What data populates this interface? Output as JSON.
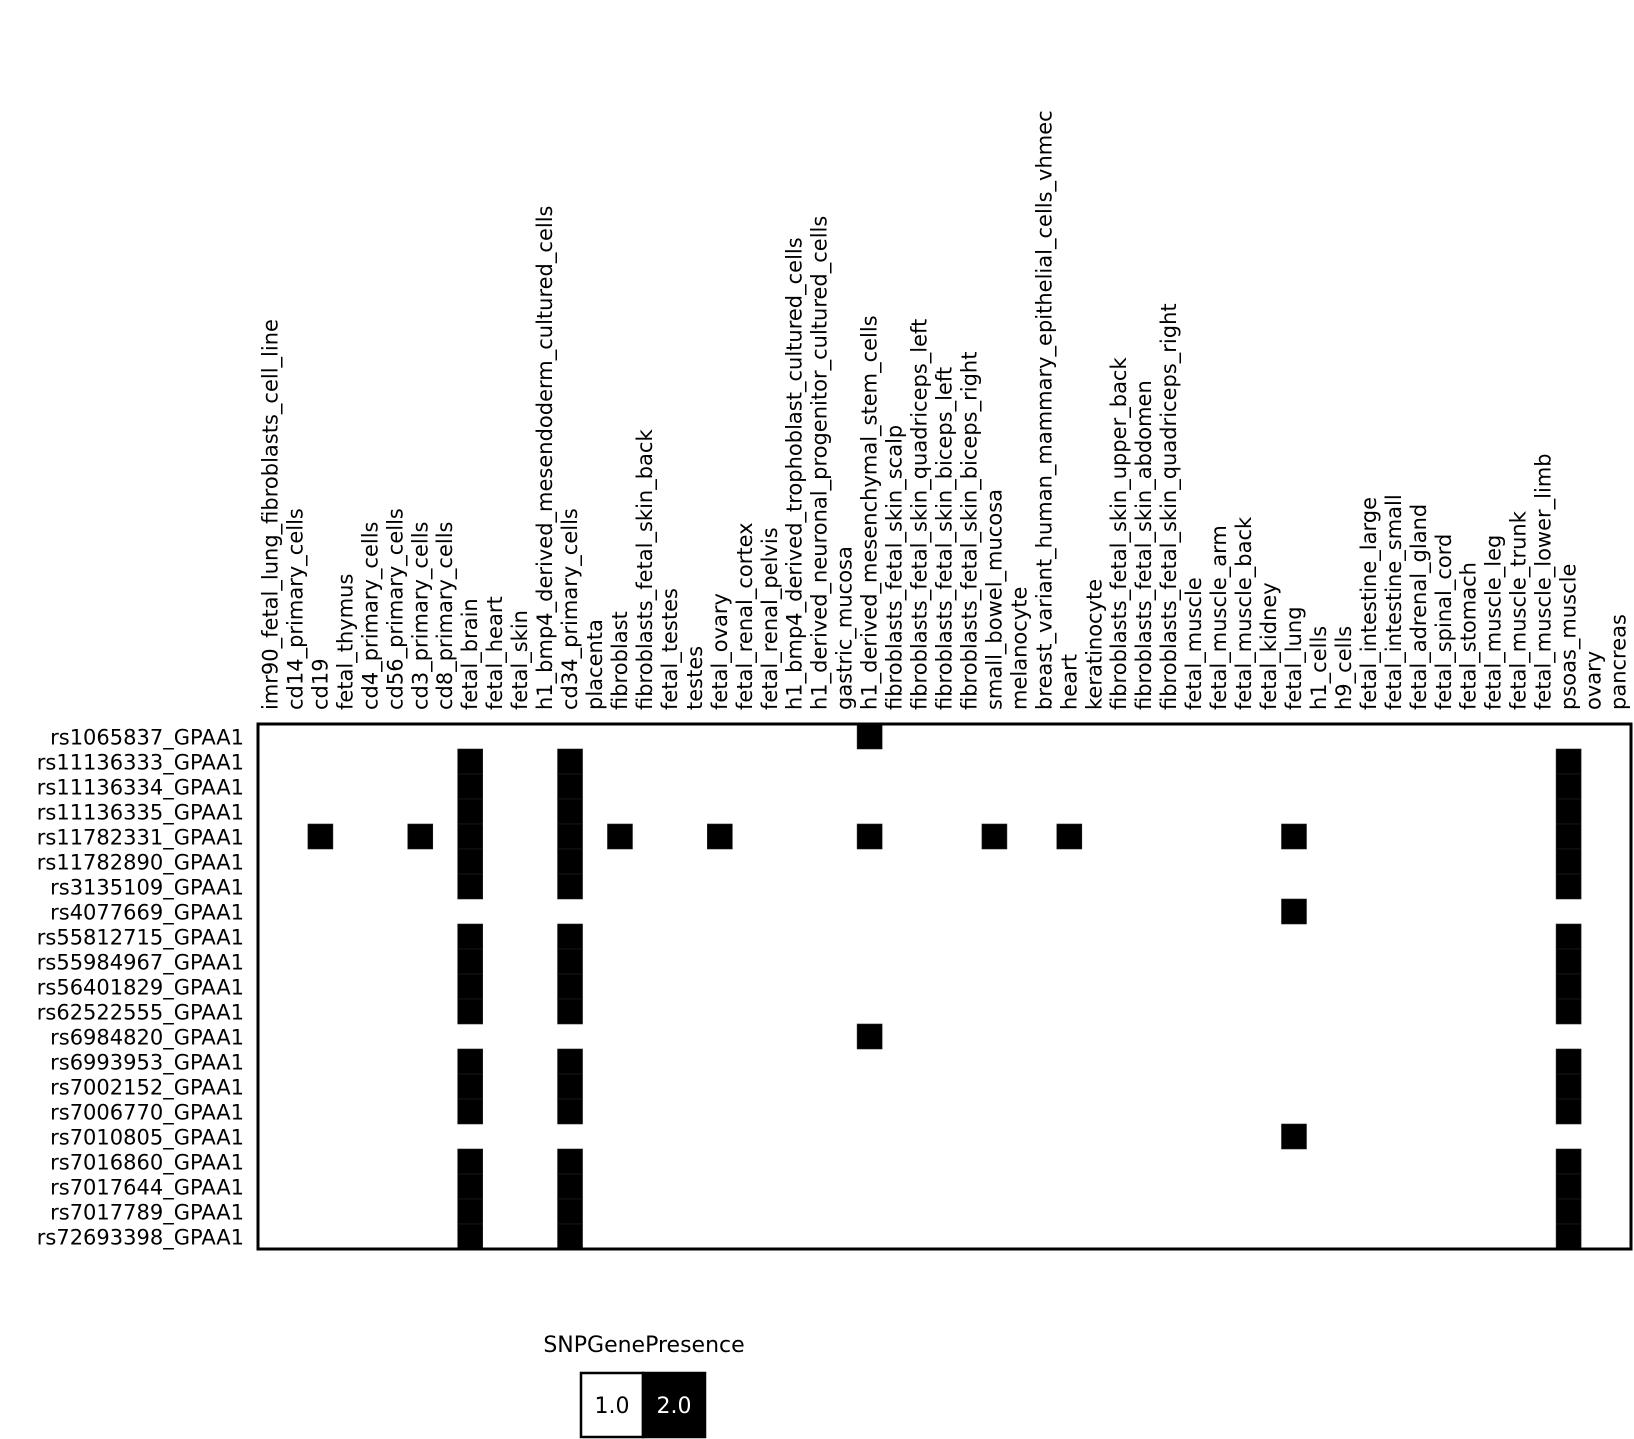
{
  "chart_data": {
    "type": "heatmap",
    "columns": [
      "imr90_fetal_lung_fibroblasts_cell_line",
      "cd14_primary_cells",
      "cd19",
      "fetal_thymus",
      "cd4_primary_cells",
      "cd56_primary_cells",
      "cd3_primary_cells",
      "cd8_primary_cells",
      "fetal_brain",
      "fetal_heart",
      "fetal_skin",
      "h1_bmp4_derived_mesendoderm_cultured_cells",
      "cd34_primary_cells",
      "placenta",
      "fibroblast",
      "fibroblasts_fetal_skin_back",
      "fetal_testes",
      "testes",
      "fetal_ovary",
      "fetal_renal_cortex",
      "fetal_renal_pelvis",
      "h1_bmp4_derived_trophoblast_cultured_cells",
      "h1_derived_neuronal_progenitor_cultured_cells",
      "gastric_mucosa",
      "h1_derived_mesenchymal_stem_cells",
      "fibroblasts_fetal_skin_scalp",
      "fibroblasts_fetal_skin_quadriceps_left",
      "fibroblasts_fetal_skin_biceps_left",
      "fibroblasts_fetal_skin_biceps_right",
      "small_bowel_mucosa",
      "melanocyte",
      "breast_variant_human_mammary_epithelial_cells_vhmec",
      "heart",
      "keratinocyte",
      "fibroblasts_fetal_skin_upper_back",
      "fibroblasts_fetal_skin_abdomen",
      "fibroblasts_fetal_skin_quadriceps_right",
      "fetal_muscle",
      "fetal_muscle_arm",
      "fetal_muscle_back",
      "fetal_kidney",
      "fetal_lung",
      "h1_cells",
      "h9_cells",
      "fetal_intestine_large",
      "fetal_intestine_small",
      "fetal_adrenal_gland",
      "fetal_spinal_cord",
      "fetal_stomach",
      "fetal_muscle_leg",
      "fetal_muscle_trunk",
      "fetal_muscle_lower_limb",
      "psoas_muscle",
      "ovary",
      "pancreas"
    ],
    "rows": [
      "rs1065837_GPAA1",
      "rs11136333_GPAA1",
      "rs11136334_GPAA1",
      "rs11136335_GPAA1",
      "rs11782331_GPAA1",
      "rs11782890_GPAA1",
      "rs3135109_GPAA1",
      "rs4077669_GPAA1",
      "rs55812715_GPAA1",
      "rs55984967_GPAA1",
      "rs56401829_GPAA1",
      "rs62522555_GPAA1",
      "rs6984820_GPAA1",
      "rs6993953_GPAA1",
      "rs7002152_GPAA1",
      "rs7006770_GPAA1",
      "rs7010805_GPAA1",
      "rs7016860_GPAA1",
      "rs7017644_GPAA1",
      "rs7017789_GPAA1",
      "rs72693398_GPAA1"
    ],
    "value_default": 1.0,
    "value_present": 2.0,
    "present_cells": [
      [
        "rs1065837_GPAA1",
        "h1_derived_mesenchymal_stem_cells"
      ],
      [
        "rs11136333_GPAA1",
        "fetal_brain"
      ],
      [
        "rs11136333_GPAA1",
        "cd34_primary_cells"
      ],
      [
        "rs11136333_GPAA1",
        "psoas_muscle"
      ],
      [
        "rs11136334_GPAA1",
        "fetal_brain"
      ],
      [
        "rs11136334_GPAA1",
        "cd34_primary_cells"
      ],
      [
        "rs11136334_GPAA1",
        "psoas_muscle"
      ],
      [
        "rs11136335_GPAA1",
        "fetal_brain"
      ],
      [
        "rs11136335_GPAA1",
        "cd34_primary_cells"
      ],
      [
        "rs11136335_GPAA1",
        "psoas_muscle"
      ],
      [
        "rs11782331_GPAA1",
        "cd19"
      ],
      [
        "rs11782331_GPAA1",
        "cd3_primary_cells"
      ],
      [
        "rs11782331_GPAA1",
        "fetal_brain"
      ],
      [
        "rs11782331_GPAA1",
        "cd34_primary_cells"
      ],
      [
        "rs11782331_GPAA1",
        "fibroblast"
      ],
      [
        "rs11782331_GPAA1",
        "fetal_ovary"
      ],
      [
        "rs11782331_GPAA1",
        "h1_derived_mesenchymal_stem_cells"
      ],
      [
        "rs11782331_GPAA1",
        "small_bowel_mucosa"
      ],
      [
        "rs11782331_GPAA1",
        "heart"
      ],
      [
        "rs11782331_GPAA1",
        "fetal_lung"
      ],
      [
        "rs11782331_GPAA1",
        "psoas_muscle"
      ],
      [
        "rs11782890_GPAA1",
        "fetal_brain"
      ],
      [
        "rs11782890_GPAA1",
        "cd34_primary_cells"
      ],
      [
        "rs11782890_GPAA1",
        "psoas_muscle"
      ],
      [
        "rs3135109_GPAA1",
        "fetal_brain"
      ],
      [
        "rs3135109_GPAA1",
        "cd34_primary_cells"
      ],
      [
        "rs3135109_GPAA1",
        "psoas_muscle"
      ],
      [
        "rs4077669_GPAA1",
        "fetal_lung"
      ],
      [
        "rs55812715_GPAA1",
        "fetal_brain"
      ],
      [
        "rs55812715_GPAA1",
        "cd34_primary_cells"
      ],
      [
        "rs55812715_GPAA1",
        "psoas_muscle"
      ],
      [
        "rs55984967_GPAA1",
        "fetal_brain"
      ],
      [
        "rs55984967_GPAA1",
        "cd34_primary_cells"
      ],
      [
        "rs55984967_GPAA1",
        "psoas_muscle"
      ],
      [
        "rs56401829_GPAA1",
        "fetal_brain"
      ],
      [
        "rs56401829_GPAA1",
        "cd34_primary_cells"
      ],
      [
        "rs56401829_GPAA1",
        "psoas_muscle"
      ],
      [
        "rs62522555_GPAA1",
        "fetal_brain"
      ],
      [
        "rs62522555_GPAA1",
        "cd34_primary_cells"
      ],
      [
        "rs62522555_GPAA1",
        "psoas_muscle"
      ],
      [
        "rs6984820_GPAA1",
        "h1_derived_mesenchymal_stem_cells"
      ],
      [
        "rs6993953_GPAA1",
        "fetal_brain"
      ],
      [
        "rs6993953_GPAA1",
        "cd34_primary_cells"
      ],
      [
        "rs6993953_GPAA1",
        "psoas_muscle"
      ],
      [
        "rs7002152_GPAA1",
        "fetal_brain"
      ],
      [
        "rs7002152_GPAA1",
        "cd34_primary_cells"
      ],
      [
        "rs7002152_GPAA1",
        "psoas_muscle"
      ],
      [
        "rs7006770_GPAA1",
        "fetal_brain"
      ],
      [
        "rs7006770_GPAA1",
        "cd34_primary_cells"
      ],
      [
        "rs7006770_GPAA1",
        "psoas_muscle"
      ],
      [
        "rs7010805_GPAA1",
        "fetal_lung"
      ],
      [
        "rs7016860_GPAA1",
        "fetal_brain"
      ],
      [
        "rs7016860_GPAA1",
        "cd34_primary_cells"
      ],
      [
        "rs7016860_GPAA1",
        "psoas_muscle"
      ],
      [
        "rs7017644_GPAA1",
        "fetal_brain"
      ],
      [
        "rs7017644_GPAA1",
        "cd34_primary_cells"
      ],
      [
        "rs7017644_GPAA1",
        "psoas_muscle"
      ],
      [
        "rs7017789_GPAA1",
        "fetal_brain"
      ],
      [
        "rs7017789_GPAA1",
        "cd34_primary_cells"
      ],
      [
        "rs7017789_GPAA1",
        "psoas_muscle"
      ],
      [
        "rs72693398_GPAA1",
        "fetal_brain"
      ],
      [
        "rs72693398_GPAA1",
        "cd34_primary_cells"
      ],
      [
        "rs72693398_GPAA1",
        "psoas_muscle"
      ]
    ],
    "legend": {
      "title": "SNPGenePresence",
      "placement": "bottom-left",
      "entries": [
        {
          "label": "1.0",
          "color": "#ffffff",
          "text_color": "#000000"
        },
        {
          "label": "2.0",
          "color": "#000000",
          "text_color": "#ffffff"
        }
      ]
    },
    "colors": {
      "present": "#000000",
      "absent": "#ffffff",
      "frame": "#000000"
    },
    "grid": false
  }
}
